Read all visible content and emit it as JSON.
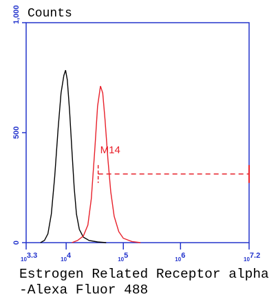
{
  "chart_data": {
    "type": "line",
    "title": "Counts",
    "x_label_lines": [
      "Estrogen Related Receptor alpha",
      "-Alexa Fluor 488"
    ],
    "x_log_base": "10",
    "xlim": [
      3.3,
      7.2
    ],
    "xticks": [
      3.3,
      4,
      5,
      6,
      7.2
    ],
    "ylim": [
      0,
      1000
    ],
    "yticks": [
      0,
      500,
      {
        "value": 1000,
        "label": "1,000"
      }
    ],
    "axis_color": "#2233cc",
    "series": [
      {
        "color": "#000000",
        "x": [
          3.55,
          3.62,
          3.68,
          3.74,
          3.8,
          3.86,
          3.91,
          3.96,
          3.99,
          4.02,
          4.06,
          4.1,
          4.14,
          4.18,
          4.23,
          4.3,
          4.4,
          4.55,
          4.7
        ],
        "values": [
          0,
          10,
          40,
          130,
          300,
          520,
          680,
          760,
          784,
          740,
          600,
          420,
          250,
          130,
          60,
          25,
          10,
          3,
          0
        ]
      },
      {
        "color": "#e8202a",
        "x": [
          4.1,
          4.2,
          4.3,
          4.38,
          4.44,
          4.5,
          4.55,
          4.6,
          4.64,
          4.68,
          4.73,
          4.78,
          4.84,
          4.92,
          5.0,
          5.15,
          5.3
        ],
        "values": [
          0,
          10,
          30,
          80,
          200,
          420,
          620,
          712,
          680,
          560,
          380,
          230,
          120,
          50,
          20,
          5,
          0
        ]
      }
    ],
    "markers": [
      {
        "label": "M14",
        "range": [
          4.56,
          7.2
        ],
        "level": 312,
        "color": "#e8202a"
      }
    ]
  }
}
